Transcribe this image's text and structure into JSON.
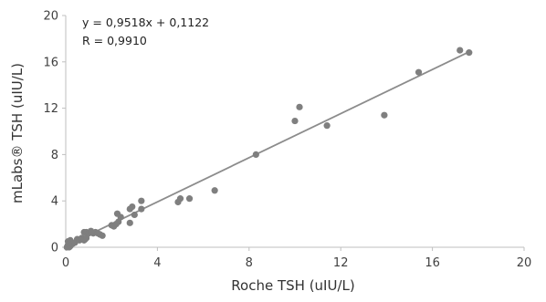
{
  "colors": {
    "point": "#7f7f7f",
    "trendline": "#8c8c8c",
    "axis": "#bfbfbf",
    "text": "#404040"
  },
  "chart_data": {
    "type": "scatter",
    "xlabel": "Roche TSH (uIU/L)",
    "ylabel": "mLabs® TSH (uIU/L)",
    "xlim": [
      0,
      20
    ],
    "ylim": [
      0,
      20
    ],
    "xticks": [
      "0",
      "4",
      "8",
      "12",
      "16",
      "20"
    ],
    "yticks": [
      "0",
      "4",
      "8",
      "12",
      "16",
      "20"
    ],
    "x_tick_values": [
      0,
      4,
      8,
      12,
      16,
      20
    ],
    "y_tick_values": [
      0,
      4,
      8,
      12,
      16,
      20
    ],
    "grid": false,
    "legend": "none",
    "annotations": [
      "y = 0,9518x + 0,1122",
      "R = 0,9910"
    ],
    "trendline": {
      "slope": 0.9518,
      "intercept": 0.1122,
      "x_range": [
        0,
        17.6
      ]
    },
    "series": [
      {
        "points": [
          [
            0.05,
            0.0
          ],
          [
            0.08,
            0.1
          ],
          [
            0.1,
            0.2
          ],
          [
            0.15,
            0.0
          ],
          [
            0.2,
            0.1
          ],
          [
            0.1,
            0.5
          ],
          [
            0.2,
            0.6
          ],
          [
            0.3,
            0.3
          ],
          [
            0.4,
            0.4
          ],
          [
            0.5,
            0.7
          ],
          [
            0.6,
            0.6
          ],
          [
            0.7,
            0.8
          ],
          [
            0.75,
            0.7
          ],
          [
            0.8,
            0.6
          ],
          [
            0.85,
            0.7
          ],
          [
            0.9,
            0.8
          ],
          [
            0.8,
            1.3
          ],
          [
            0.9,
            1.3
          ],
          [
            1.0,
            1.2
          ],
          [
            1.1,
            1.3
          ],
          [
            1.2,
            1.2
          ],
          [
            1.3,
            1.3
          ],
          [
            1.4,
            1.2
          ],
          [
            1.5,
            1.1
          ],
          [
            1.1,
            1.4
          ],
          [
            1.6,
            1.0
          ],
          [
            2.0,
            1.9
          ],
          [
            2.1,
            1.8
          ],
          [
            2.2,
            2.0
          ],
          [
            2.3,
            2.2
          ],
          [
            2.25,
            2.9
          ],
          [
            2.4,
            2.6
          ],
          [
            2.8,
            2.1
          ],
          [
            2.8,
            3.3
          ],
          [
            2.9,
            3.5
          ],
          [
            3.0,
            2.8
          ],
          [
            3.3,
            3.3
          ],
          [
            3.3,
            4.0
          ],
          [
            4.9,
            3.9
          ],
          [
            5.0,
            4.2
          ],
          [
            5.4,
            4.2
          ],
          [
            6.5,
            4.9
          ],
          [
            8.3,
            8.0
          ],
          [
            10.0,
            10.9
          ],
          [
            10.2,
            12.1
          ],
          [
            11.4,
            10.5
          ],
          [
            13.9,
            11.4
          ],
          [
            15.4,
            15.1
          ],
          [
            17.2,
            17.0
          ],
          [
            17.6,
            16.8
          ]
        ]
      }
    ]
  }
}
